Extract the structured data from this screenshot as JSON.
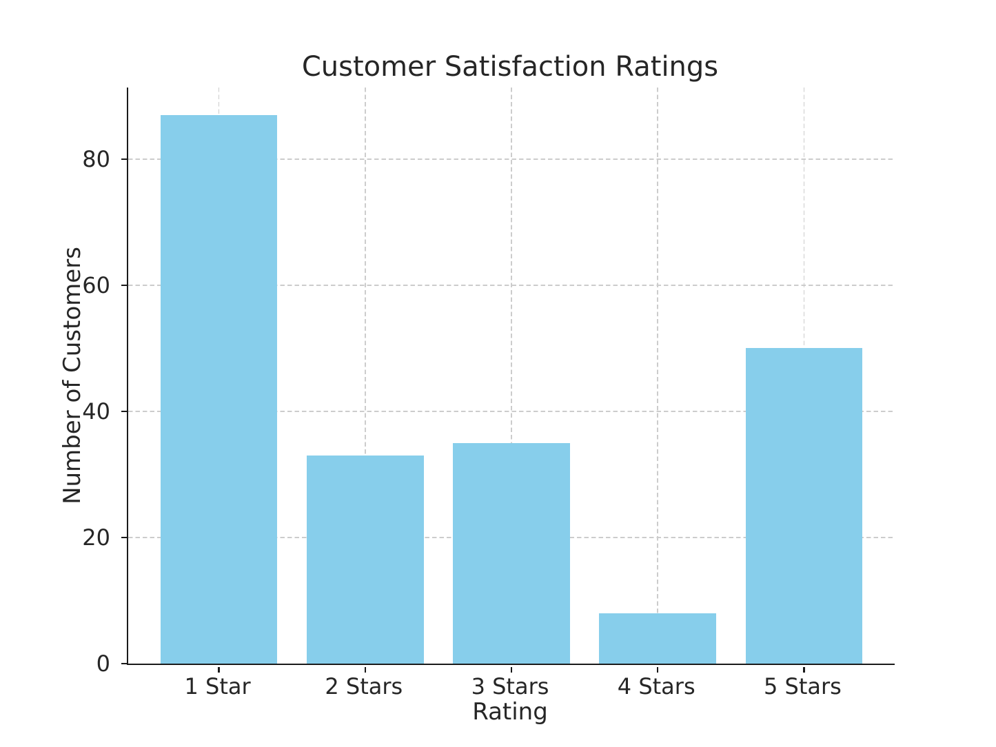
{
  "chart_data": {
    "type": "bar",
    "title": "Customer Satisfaction Ratings",
    "xlabel": "Rating",
    "ylabel": "Number of Customers",
    "categories": [
      "1 Star",
      "2 Stars",
      "3 Stars",
      "4 Stars",
      "5 Stars"
    ],
    "values": [
      87,
      33,
      35,
      8,
      50
    ],
    "yticks": [
      0,
      20,
      40,
      60,
      80
    ],
    "ylim": [
      0,
      91.35
    ],
    "grid": "dashed, behind bars, horizontal at yticks and vertical at category centers",
    "legend_position": "none",
    "colors": {
      "bar_fill": "#87CEEB",
      "axis_spine": "#1a1a1a",
      "gridline": "#cccccc",
      "text": "#262626",
      "background": "#ffffff"
    }
  }
}
